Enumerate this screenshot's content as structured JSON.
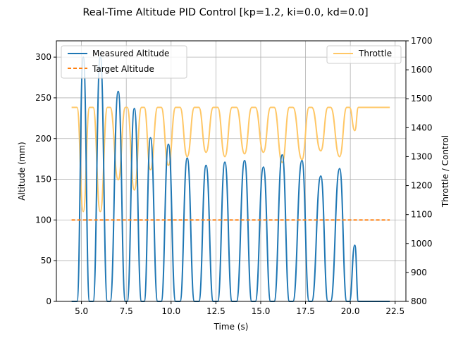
{
  "chart_data": {
    "type": "line",
    "title": "Real-Time Altitude PID Control [kp=1.2, ki=0.0, kd=0.0]",
    "xlabel": "Time (s)",
    "ylabel": "Altitude (mm)",
    "ylabel_right": "Throttle / Control",
    "xlim": [
      3.6,
      23.1
    ],
    "ylim": [
      0,
      320
    ],
    "ylim_right": [
      800,
      1700
    ],
    "xticks": [
      5.0,
      7.5,
      10.0,
      12.5,
      15.0,
      17.5,
      20.0,
      22.5
    ],
    "xtick_labels": [
      "5.0",
      "7.5",
      "10.0",
      "12.5",
      "15.0",
      "17.5",
      "20.0",
      "22.5"
    ],
    "yticks": [
      0,
      50,
      100,
      150,
      200,
      250,
      300
    ],
    "ytick_labels": [
      "0",
      "50",
      "100",
      "150",
      "200",
      "250",
      "300"
    ],
    "yticks_right": [
      800,
      900,
      1000,
      1100,
      1200,
      1300,
      1400,
      1500,
      1600,
      1700
    ],
    "ytick_right_labels": [
      "800",
      "900",
      "1000",
      "1100",
      "1200",
      "1300",
      "1400",
      "1500",
      "1600",
      "1700"
    ],
    "grid": true,
    "legend_left_position": "upper-left",
    "legend_right_position": "upper-right",
    "colors": {
      "measured": "#1f77b4",
      "target": "#ff7f0e",
      "throttle": "#ffc766"
    },
    "series": [
      {
        "name": "Measured Altitude",
        "axis": "left",
        "style": "solid",
        "x": [
          4.45,
          4.75,
          5.1,
          5.45,
          5.65,
          6.05,
          6.45,
          6.6,
          7.05,
          7.45,
          7.55,
          7.95,
          8.35,
          8.5,
          8.85,
          9.25,
          9.45,
          9.85,
          10.25,
          10.5,
          10.9,
          11.3,
          11.55,
          11.95,
          12.35,
          12.6,
          13.0,
          13.4,
          13.65,
          14.1,
          14.5,
          14.7,
          15.15,
          15.55,
          15.75,
          16.2,
          16.6,
          16.8,
          17.3,
          17.7,
          17.85,
          18.35,
          18.75,
          18.9,
          19.4,
          19.8,
          19.95,
          20.25,
          20.45,
          22.2
        ],
        "y": [
          0,
          0,
          300,
          0,
          0,
          300,
          0,
          0,
          258,
          0,
          0,
          237,
          0,
          0,
          201,
          0,
          0,
          193,
          0,
          0,
          176,
          0,
          0,
          167,
          0,
          0,
          171,
          0,
          0,
          173,
          0,
          0,
          165,
          0,
          0,
          180,
          0,
          0,
          173,
          0,
          0,
          154,
          0,
          0,
          163,
          0,
          0,
          69,
          0,
          0
        ]
      },
      {
        "name": "Target Altitude",
        "axis": "left",
        "style": "dashed",
        "x": [
          4.45,
          22.2
        ],
        "y": [
          100,
          100
        ]
      },
      {
        "name": "Throttle",
        "axis": "right",
        "style": "solid",
        "x": [
          4.45,
          4.75,
          5.1,
          5.45,
          5.65,
          6.05,
          6.45,
          6.6,
          7.05,
          7.45,
          7.55,
          7.95,
          8.35,
          8.5,
          8.85,
          9.25,
          9.45,
          9.85,
          10.25,
          10.5,
          10.9,
          11.3,
          11.55,
          11.95,
          12.35,
          12.6,
          13.0,
          13.4,
          13.65,
          14.1,
          14.5,
          14.7,
          15.15,
          15.55,
          15.75,
          16.2,
          16.6,
          16.8,
          17.3,
          17.7,
          17.85,
          18.35,
          18.75,
          18.9,
          19.4,
          19.8,
          19.95,
          20.25,
          20.45,
          22.2
        ],
        "y": [
          1470,
          1470,
          1110,
          1470,
          1470,
          1110,
          1470,
          1470,
          1220,
          1470,
          1470,
          1185,
          1470,
          1470,
          1255,
          1470,
          1470,
          1270,
          1470,
          1470,
          1300,
          1470,
          1470,
          1315,
          1470,
          1470,
          1300,
          1470,
          1470,
          1310,
          1470,
          1470,
          1315,
          1470,
          1470,
          1280,
          1470,
          1470,
          1290,
          1470,
          1470,
          1320,
          1470,
          1470,
          1300,
          1470,
          1470,
          1390,
          1470,
          1470
        ]
      }
    ]
  }
}
